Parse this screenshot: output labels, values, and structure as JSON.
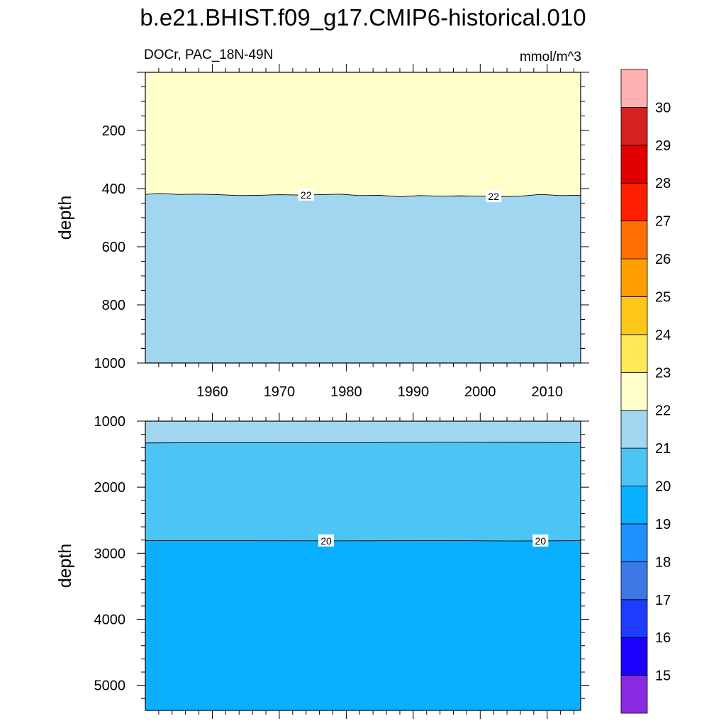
{
  "chart_data": [
    {
      "type": "contour",
      "panel": "upper",
      "title": "b.e21.BHIST.f09_g17.CMIP6-historical.010",
      "left_label": "DOCr, PAC_18N-49N",
      "right_label": "mmol/m^3",
      "xlabel": "",
      "ylabel": "depth",
      "xlim": [
        1950,
        2015
      ],
      "ylim": [
        1000,
        0
      ],
      "xticks": [
        "1960",
        "1970",
        "1980",
        "1990",
        "2000",
        "2010"
      ],
      "yticks": [
        "200",
        "400",
        "600",
        "800",
        "1000"
      ],
      "regions": [
        {
          "range": [
            22,
            23
          ],
          "color": "#FFFFCC",
          "from_depth": 0,
          "to_depth": "contour_22"
        },
        {
          "range": [
            21,
            22
          ],
          "color": "#A0D6F0",
          "from_depth": "contour_22",
          "to_depth": 1000
        }
      ],
      "contours": [
        {
          "level": 22,
          "labels": [
            "22",
            "22"
          ],
          "label_years": [
            1974,
            2002
          ],
          "years": [
            1950,
            1952,
            1955,
            1958,
            1961,
            1964,
            1967,
            1970,
            1973,
            1976,
            1979,
            1982,
            1985,
            1988,
            1991,
            1994,
            1997,
            2000,
            2003,
            2006,
            2009,
            2012,
            2015
          ],
          "depths": [
            420,
            417,
            420,
            419,
            421,
            424,
            423,
            421,
            422,
            421,
            419,
            424,
            423,
            428,
            424,
            426,
            425,
            426,
            428,
            426,
            420,
            424,
            423
          ]
        }
      ]
    },
    {
      "type": "contour",
      "panel": "lower",
      "xlabel": "",
      "ylabel": "depth",
      "xlim": [
        1950,
        2015
      ],
      "ylim": [
        5380,
        1000
      ],
      "xticks": [],
      "yticks": [
        "1000",
        "2000",
        "3000",
        "4000",
        "5000"
      ],
      "regions": [
        {
          "range": [
            21,
            22
          ],
          "color": "#A0D6F0",
          "from_depth": 1000,
          "to_depth": "contour_21"
        },
        {
          "range": [
            20,
            21
          ],
          "color": "#4CC4F4",
          "from_depth": "contour_21",
          "to_depth": "contour_20"
        },
        {
          "range": [
            19,
            20
          ],
          "color": "#0AB0FF",
          "from_depth": "contour_20",
          "to_depth": 5380
        }
      ],
      "contours": [
        {
          "level": 21,
          "labels": [],
          "label_years": [],
          "years": [
            1950,
            1965,
            1980,
            1995,
            2015
          ],
          "depths": [
            1330,
            1325,
            1328,
            1320,
            1325
          ]
        },
        {
          "level": 20,
          "labels": [
            "20",
            "20"
          ],
          "label_years": [
            1977,
            2009
          ],
          "years": [
            1950,
            1965,
            1980,
            1995,
            2005,
            2015
          ],
          "depths": [
            2810,
            2810,
            2812,
            2808,
            2815,
            2810
          ]
        }
      ]
    }
  ],
  "colorbar": {
    "labels": [
      "15",
      "16",
      "17",
      "18",
      "19",
      "20",
      "21",
      "22",
      "23",
      "24",
      "25",
      "26",
      "27",
      "28",
      "29",
      "30"
    ],
    "colors_bottom_to_top": [
      "#8A2BE2",
      "#1E00FF",
      "#1E3CFF",
      "#3C78E6",
      "#1E90FF",
      "#0AB0FF",
      "#4CC4F4",
      "#A0D6F0",
      "#FFFFCC",
      "#FFE857",
      "#FFC61A",
      "#FF9E00",
      "#FF6E00",
      "#FF1E00",
      "#E10000",
      "#D42222",
      "#FFB0B0"
    ]
  }
}
